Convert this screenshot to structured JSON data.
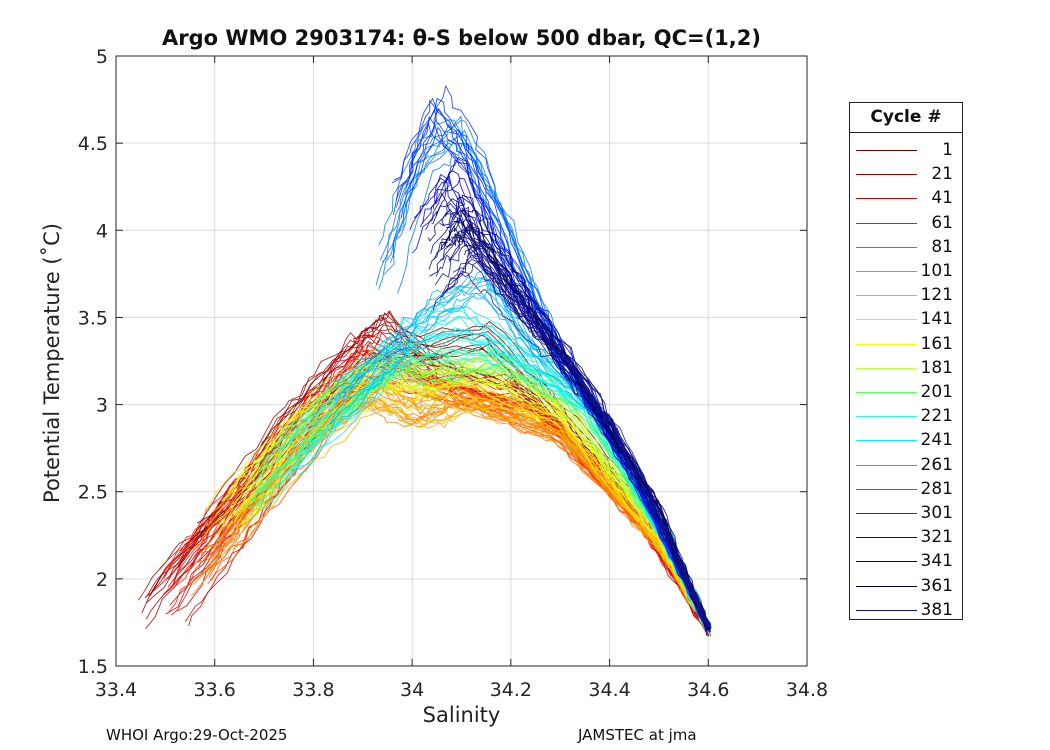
{
  "chart_data": {
    "type": "line",
    "title": "Argo WMO 2903174: θ-S below 500 dbar,  QC=(1,2)",
    "xlabel": "Salinity",
    "ylabel": "Potential Temperature (˚C)",
    "xlim": [
      33.4,
      34.8
    ],
    "ylim": [
      1.5,
      5
    ],
    "xticks": [
      33.4,
      33.6,
      33.8,
      34,
      34.2,
      34.4,
      34.6,
      34.8
    ],
    "xtick_labels": [
      "33.4",
      "33.6",
      "33.8",
      "34",
      "34.2",
      "34.4",
      "34.6",
      "34.8"
    ],
    "yticks": [
      1.5,
      2,
      2.5,
      3,
      3.5,
      4,
      4.5,
      5
    ],
    "ytick_labels": [
      "1.5",
      "2",
      "2.5",
      "3",
      "3.5",
      "4",
      "4.5",
      "5"
    ],
    "grid": true,
    "legend_position": "right, outside plot area",
    "legend_title": "Cycle #",
    "series": [
      {
        "name": "1",
        "color": "#6e0000",
        "salinity": [
          33.55,
          33.75,
          33.95,
          34.15,
          34.35,
          34.5,
          34.6
        ],
        "theta": [
          2.2,
          2.8,
          3.3,
          3.4,
          2.8,
          2.3,
          1.7
        ]
      },
      {
        "name": "21",
        "color": "#a00000",
        "salinity": [
          33.46,
          33.6,
          33.75,
          33.88,
          33.95,
          34.05,
          34.2,
          34.4,
          34.6
        ],
        "theta": [
          1.8,
          2.3,
          2.9,
          3.3,
          3.45,
          3.2,
          3.1,
          2.6,
          1.7
        ]
      },
      {
        "name": "41",
        "color": "#d20000",
        "salinity": [
          33.52,
          33.65,
          33.8,
          33.92,
          34.05,
          34.25,
          34.45,
          34.6
        ],
        "theta": [
          1.85,
          2.35,
          2.95,
          3.35,
          3.15,
          3.0,
          2.4,
          1.72
        ]
      },
      {
        "name": "61",
        "color": "#ff1400",
        "salinity": [
          33.5,
          33.63,
          33.78,
          33.9,
          34.05,
          34.25,
          34.45,
          34.6
        ],
        "theta": [
          1.95,
          2.4,
          2.9,
          3.25,
          3.1,
          2.95,
          2.35,
          1.72
        ]
      },
      {
        "name": "81",
        "color": "#ff4600",
        "salinity": [
          33.58,
          33.7,
          33.85,
          33.95,
          34.1,
          34.3,
          34.5,
          34.6
        ],
        "theta": [
          2.1,
          2.5,
          3.0,
          3.2,
          3.05,
          2.85,
          2.2,
          1.72
        ]
      },
      {
        "name": "101",
        "color": "#ff7800",
        "salinity": [
          33.56,
          33.72,
          33.88,
          34.0,
          34.1,
          34.3,
          34.5,
          34.6
        ],
        "theta": [
          2.05,
          2.6,
          3.1,
          2.95,
          3.05,
          2.8,
          2.2,
          1.72
        ]
      },
      {
        "name": "121",
        "color": "#ffaa00",
        "salinity": [
          33.62,
          33.78,
          33.92,
          34.02,
          34.12,
          34.3,
          34.5,
          34.6
        ],
        "theta": [
          2.25,
          2.75,
          3.05,
          2.9,
          3.0,
          2.85,
          2.2,
          1.72
        ]
      },
      {
        "name": "141",
        "color": "#ffdc00",
        "salinity": [
          33.6,
          33.75,
          33.9,
          34.0,
          34.1,
          34.3,
          34.5,
          34.6
        ],
        "theta": [
          2.3,
          2.8,
          3.1,
          3.05,
          3.1,
          2.9,
          2.2,
          1.72
        ]
      },
      {
        "name": "161",
        "color": "#f0ff0f",
        "salinity": [
          33.63,
          33.78,
          33.92,
          34.02,
          34.12,
          34.3,
          34.5,
          34.6
        ],
        "theta": [
          2.35,
          2.85,
          3.15,
          3.1,
          3.15,
          2.95,
          2.25,
          1.72
        ]
      },
      {
        "name": "181",
        "color": "#b9ff46",
        "salinity": [
          33.66,
          33.8,
          33.94,
          34.04,
          34.15,
          34.32,
          34.5,
          34.6
        ],
        "theta": [
          2.4,
          2.9,
          3.2,
          3.15,
          3.2,
          2.95,
          2.25,
          1.72
        ]
      },
      {
        "name": "201",
        "color": "#5aff5a",
        "salinity": [
          33.68,
          33.82,
          33.96,
          34.06,
          34.18,
          34.35,
          34.5,
          34.6
        ],
        "theta": [
          2.5,
          2.95,
          3.25,
          3.2,
          3.25,
          3.0,
          2.3,
          1.72
        ]
      },
      {
        "name": "221",
        "color": "#28ffc8",
        "salinity": [
          33.7,
          33.85,
          33.98,
          34.08,
          34.2,
          34.35,
          34.5,
          34.6
        ],
        "theta": [
          2.55,
          3.0,
          3.3,
          3.35,
          3.3,
          3.0,
          2.3,
          1.72
        ]
      },
      {
        "name": "241",
        "color": "#00f0ff",
        "salinity": [
          33.75,
          33.9,
          34.0,
          34.1,
          34.22,
          34.38,
          34.5,
          34.6
        ],
        "theta": [
          2.7,
          3.1,
          3.4,
          3.5,
          3.3,
          2.95,
          2.3,
          1.72
        ]
      },
      {
        "name": "261",
        "color": "#00b4ff",
        "salinity": [
          33.85,
          33.95,
          34.05,
          34.15,
          34.25,
          34.4,
          34.52,
          34.6
        ],
        "theta": [
          3.0,
          3.25,
          3.55,
          3.7,
          3.3,
          2.9,
          2.25,
          1.72
        ]
      },
      {
        "name": "281",
        "color": "#0078ff",
        "salinity": [
          33.95,
          34.02,
          34.1,
          34.2,
          34.3,
          34.45,
          34.6
        ],
        "theta": [
          3.8,
          4.4,
          4.6,
          4.0,
          3.3,
          2.6,
          1.72
        ]
      },
      {
        "name": "301",
        "color": "#0032ff",
        "salinity": [
          33.98,
          34.05,
          34.12,
          34.2,
          34.3,
          34.45,
          34.6
        ],
        "theta": [
          4.2,
          4.7,
          4.4,
          3.8,
          3.3,
          2.6,
          1.72
        ]
      },
      {
        "name": "321",
        "color": "#0000d2",
        "salinity": [
          34.02,
          34.08,
          34.15,
          34.22,
          34.32,
          34.45,
          34.6
        ],
        "theta": [
          4.0,
          4.3,
          3.9,
          3.6,
          3.2,
          2.6,
          1.72
        ]
      },
      {
        "name": "341",
        "color": "#00008c",
        "salinity": [
          34.05,
          34.1,
          34.17,
          34.25,
          34.35,
          34.48,
          34.6
        ],
        "theta": [
          3.9,
          4.1,
          3.8,
          3.5,
          3.1,
          2.5,
          1.72
        ]
      },
      {
        "name": "361",
        "color": "#000050",
        "salinity": [
          34.08,
          34.12,
          34.18,
          34.27,
          34.37,
          34.5,
          34.6
        ],
        "theta": [
          3.95,
          4.0,
          3.75,
          3.4,
          3.0,
          2.4,
          1.72
        ]
      },
      {
        "name": "381",
        "color": "#14148c",
        "salinity": [
          34.06,
          34.12,
          34.2,
          34.3,
          34.4,
          34.5,
          34.6
        ],
        "theta": [
          3.7,
          3.9,
          3.6,
          3.3,
          2.9,
          2.35,
          1.72
        ]
      }
    ]
  },
  "footer": {
    "left": "WHOI Argo:29-Oct-2025",
    "right": "JAMSTEC at jma"
  }
}
